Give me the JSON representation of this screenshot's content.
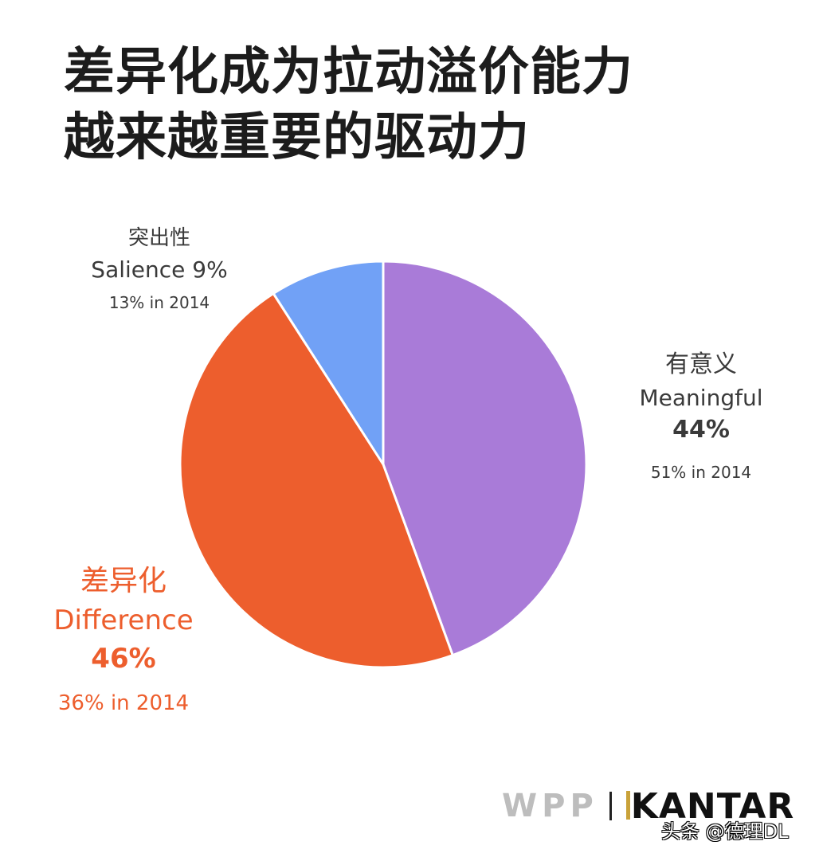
{
  "title": {
    "line1": "差异化成为拉动溢价能力",
    "line2": "越来越重要的驱动力"
  },
  "colors": {
    "meaningful": "#a97bd8",
    "difference": "#ed5e2d",
    "salience": "#71a1f6",
    "text_dark": "#3a3a3a",
    "title": "#1c1c1c"
  },
  "labels": {
    "salience": {
      "cn": "突出性",
      "en": "Salience 9%",
      "sub": "13% in 2014"
    },
    "meaningful": {
      "cn": "有意义",
      "en": "Meaningful",
      "pct": "44%",
      "sub": "51% in 2014"
    },
    "difference": {
      "cn": "差异化",
      "en": "Difference",
      "pct": "46%",
      "sub": "36% in 2014"
    }
  },
  "logo": {
    "wpp": "WPP",
    "kantar": "KANTAR"
  },
  "watermark": "头条 @德理DL",
  "chart_data": {
    "type": "pie",
    "title": "差异化成为拉动溢价能力越来越重要的驱动力",
    "categories": [
      "Meaningful (有意义)",
      "Difference (差异化)",
      "Salience (突出性)"
    ],
    "values": [
      44,
      46,
      9
    ],
    "values_2014": [
      51,
      36,
      13
    ],
    "colors": [
      "#a97bd8",
      "#ed5e2d",
      "#71a1f6"
    ],
    "start_angle_deg": 0,
    "direction": "clockwise",
    "annotations": [
      "51% in 2014",
      "36% in 2014",
      "13% in 2014"
    ]
  }
}
